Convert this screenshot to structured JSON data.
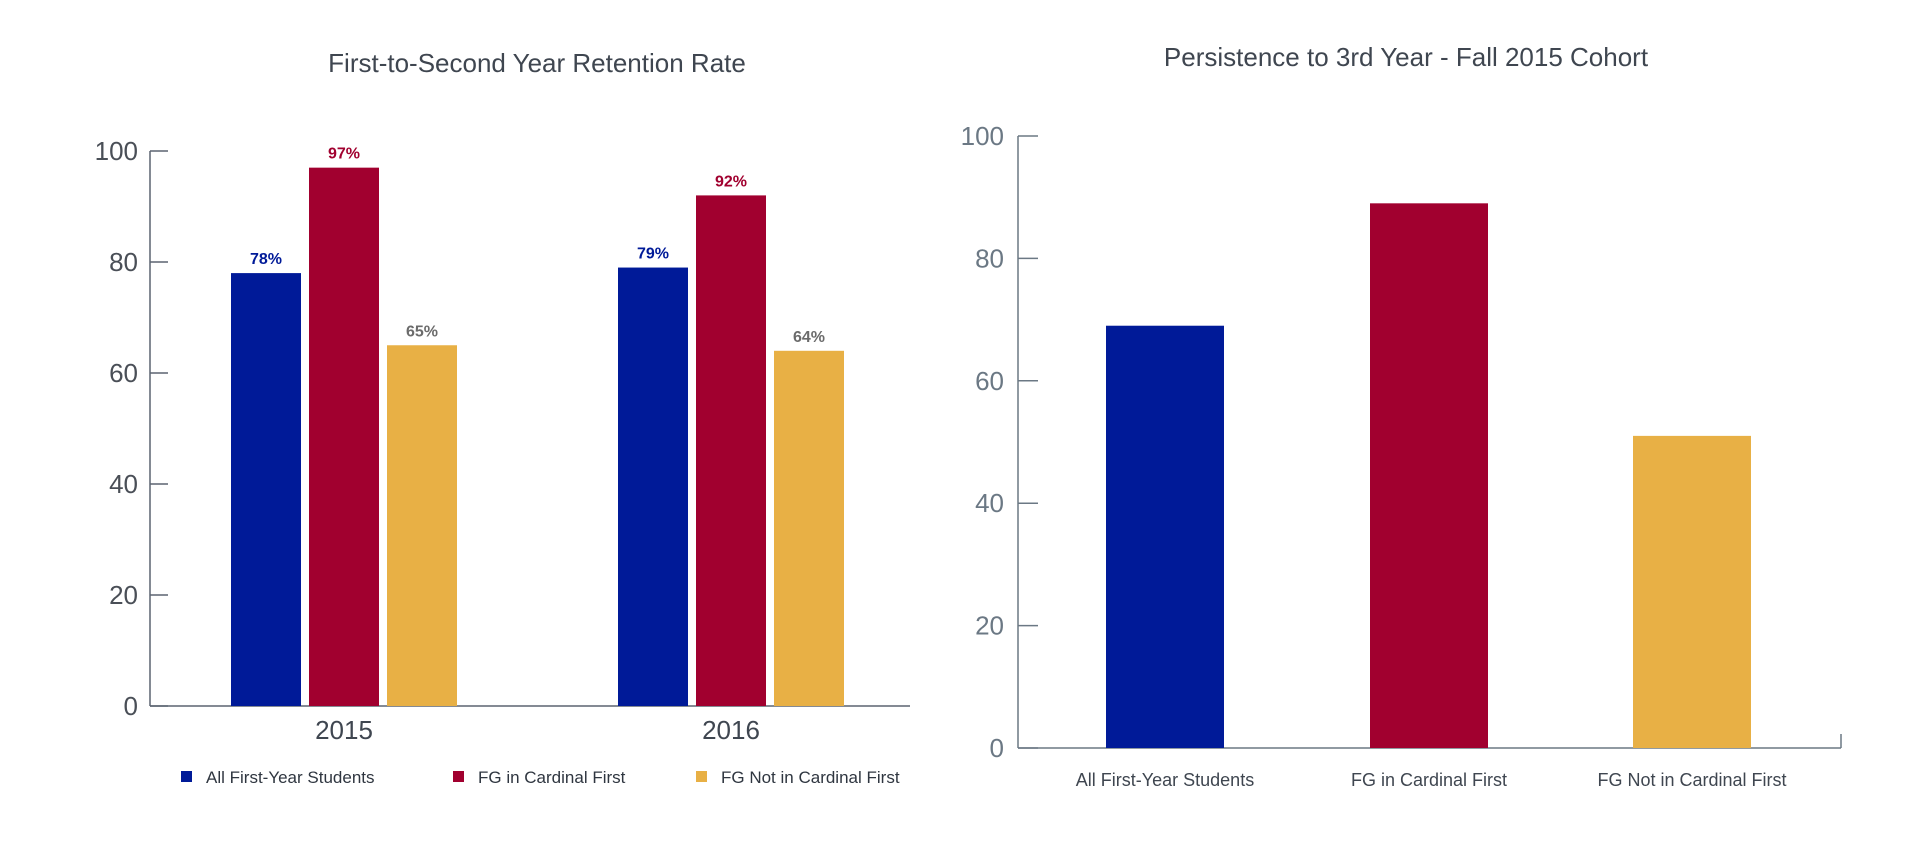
{
  "chart_data": [
    {
      "type": "bar",
      "title": "First-to-Second Year Retention Rate",
      "categories": [
        "2015",
        "2016"
      ],
      "series": [
        {
          "name": "All First-Year Students",
          "color": "#001a98",
          "values": [
            78,
            79
          ],
          "labels": [
            "78%",
            "79%"
          ],
          "label_color": "#001a98",
          "label_bold": true
        },
        {
          "name": "FG in Cardinal First",
          "color": "#a1002f",
          "values": [
            97,
            92
          ],
          "labels": [
            "97%",
            "92%"
          ],
          "label_color": "#a1002f",
          "label_bold": true
        },
        {
          "name": "FG Not in Cardinal First",
          "color": "#e8b045",
          "values": [
            65,
            64
          ],
          "labels": [
            "65%",
            "64%"
          ],
          "label_color": "#6b6b6b",
          "label_bold": false
        }
      ],
      "yticks": [
        0,
        20,
        40,
        60,
        80,
        100
      ],
      "ylim": [
        0,
        100
      ],
      "xlabel": "",
      "ylabel": "",
      "legend": "bottom"
    },
    {
      "type": "bar",
      "title": "Persistence to 3rd Year - Fall 2015 Cohort",
      "categories": [
        "All First-Year Students",
        "FG in Cardinal First",
        "FG Not in Cardinal First"
      ],
      "values": [
        69,
        89,
        51
      ],
      "colors": [
        "#001a98",
        "#a1002f",
        "#e8b045"
      ],
      "yticks": [
        0,
        20,
        40,
        60,
        80,
        100
      ],
      "ylim": [
        0,
        100
      ],
      "xlabel": "",
      "ylabel": "",
      "legend": "none"
    }
  ]
}
